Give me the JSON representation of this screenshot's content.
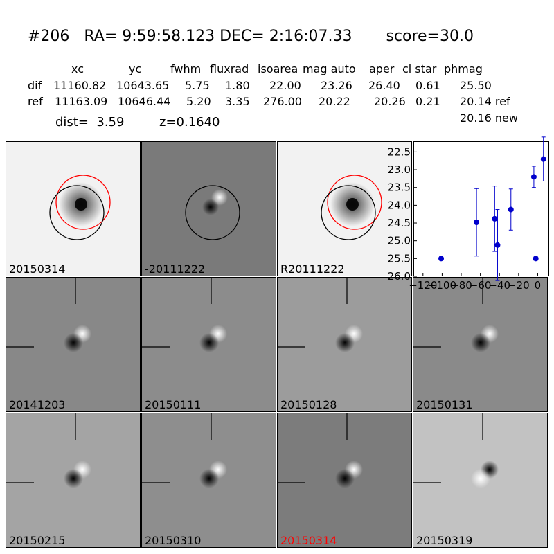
{
  "header": {
    "title": "#206   RA= 9:59:58.123 DEC= 2:16:07.33       score=30.0",
    "columns": [
      "xc",
      "yc",
      "fwhm",
      "fluxrad",
      "isoarea",
      "mag auto",
      "aper",
      "cl star",
      "phmag"
    ],
    "rows": [
      {
        "label": "dif",
        "values": [
          "11160.82",
          "10643.65",
          "5.75",
          "1.80",
          "22.00",
          "23.26",
          "26.40",
          "0.61",
          "25.50"
        ]
      },
      {
        "label": "ref",
        "values": [
          "11163.09",
          "10646.44",
          "5.20",
          "3.35",
          "276.00",
          "20.22",
          "20.26",
          "0.21",
          "20.14 ref"
        ]
      }
    ],
    "extra_phmag": "20.16 new",
    "dist": "dist=  3.59",
    "z": "z=0.1640"
  },
  "panels": [
    {
      "label": "20150314",
      "bg": "#f2f2f2",
      "kind": "source",
      "circles": [
        "red",
        "black"
      ]
    },
    {
      "label": "-20111222",
      "bg": "#7a7a7a",
      "kind": "dipole",
      "circles": [
        "black"
      ]
    },
    {
      "label": "R20111222",
      "bg": "#f2f2f2",
      "kind": "source",
      "circles": [
        "red",
        "black"
      ]
    },
    {
      "label": "20141203",
      "bg": "#888888",
      "kind": "dipole-ticks",
      "color": "#000000"
    },
    {
      "label": "20150111",
      "bg": "#8c8c8c",
      "kind": "dipole-ticks",
      "color": "#000000"
    },
    {
      "label": "20150128",
      "bg": "#9c9c9c",
      "kind": "dipole-ticks",
      "color": "#000000"
    },
    {
      "label": "20150131",
      "bg": "#8a8a8a",
      "kind": "dipole-ticks",
      "color": "#000000"
    },
    {
      "label": "20150215",
      "bg": "#a4a4a4",
      "kind": "dipole-ticks",
      "color": "#000000"
    },
    {
      "label": "20150310",
      "bg": "#8e8e8e",
      "kind": "dipole-ticks",
      "color": "#000000"
    },
    {
      "label": "20150314",
      "bg": "#7c7c7c",
      "kind": "dipole-ticks",
      "color": "#ff0000"
    },
    {
      "label": "20150319",
      "bg": "#c2c2c2",
      "kind": "dipole-ticks-inv",
      "color": "#000000"
    }
  ],
  "chart_data": {
    "type": "scatter",
    "xlim": [
      -130,
      12
    ],
    "ylim": [
      26.0,
      22.2
    ],
    "xticks": [
      -120,
      -100,
      -80,
      -60,
      -40,
      -20,
      0
    ],
    "xtick_labels": [
      "−120",
      "−100",
      "−80",
      "−60",
      "−40",
      "−20",
      "0"
    ],
    "yticks": [
      22.5,
      23.0,
      23.5,
      24.0,
      24.5,
      25.0,
      25.5,
      26.0
    ],
    "ytick_labels": [
      "22.5",
      "23.0",
      "23.5",
      "24.0",
      "24.5",
      "25.0",
      "25.5",
      "26.0"
    ],
    "points": [
      {
        "x": -101,
        "y": 25.5,
        "err": 0.05
      },
      {
        "x": -64,
        "y": 24.48,
        "err": 0.95
      },
      {
        "x": -45,
        "y": 24.38,
        "err": 0.92
      },
      {
        "x": -42,
        "y": 25.12,
        "err": 1.0
      },
      {
        "x": -28,
        "y": 24.12,
        "err": 0.58
      },
      {
        "x": -4,
        "y": 23.2,
        "err": 0.3
      },
      {
        "x": -2,
        "y": 25.5,
        "err": 0.05
      },
      {
        "x": 6,
        "y": 22.7,
        "err": 0.62
      }
    ],
    "color": "#0000cc"
  }
}
